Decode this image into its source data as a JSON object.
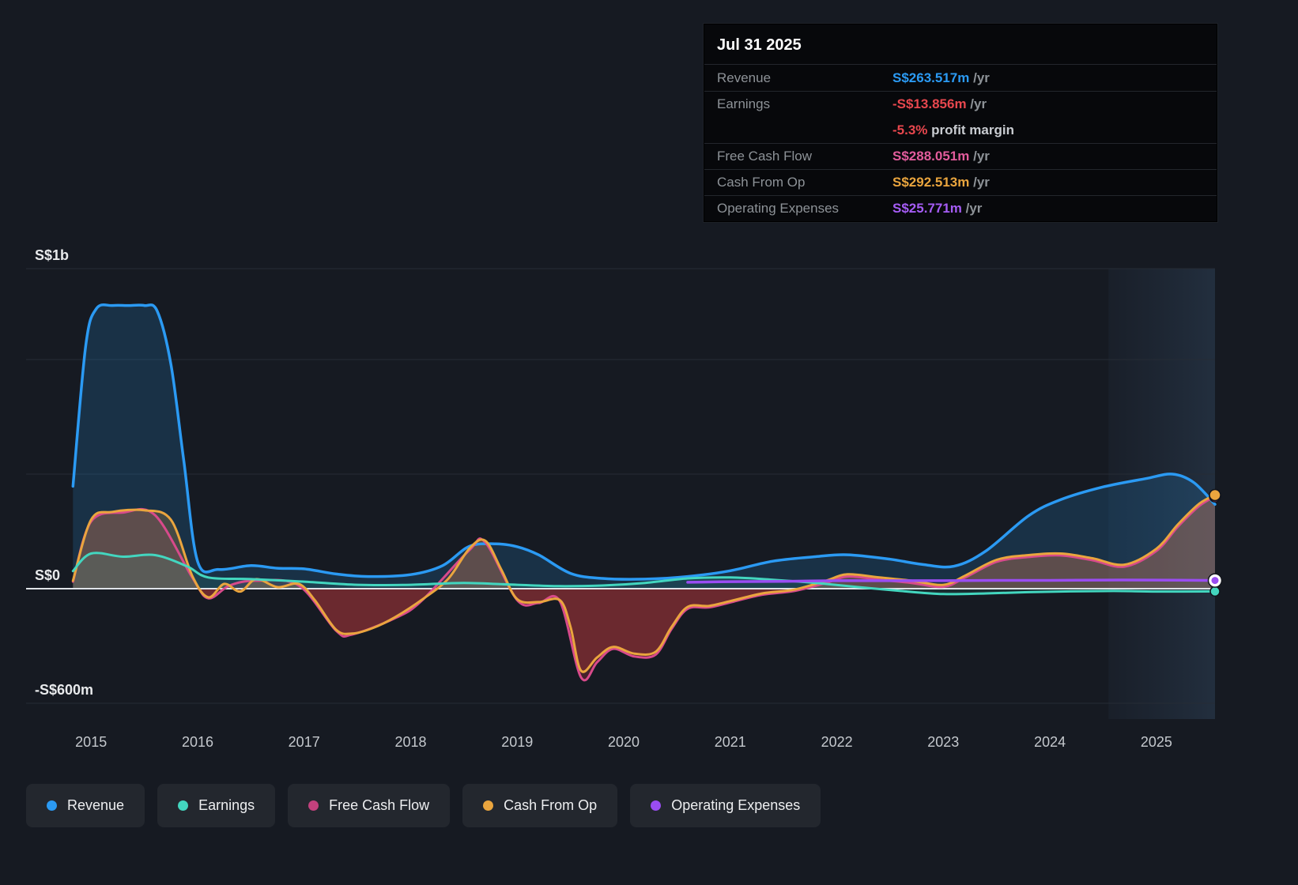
{
  "tooltip": {
    "date": "Jul 31 2025",
    "rows": [
      {
        "label": "Revenue",
        "value": "S$263.517m",
        "suffix": " /yr",
        "color": "#2b9af3",
        "divider": false,
        "suffix_bright": false
      },
      {
        "label": "Earnings",
        "value": "-S$13.856m",
        "suffix": " /yr",
        "color": "#e8474e",
        "divider": true,
        "suffix_bright": false
      },
      {
        "label": "",
        "value": "-5.3%",
        "suffix": " profit margin",
        "color": "#e8474e",
        "divider": false,
        "suffix_bright": true
      },
      {
        "label": "Free Cash Flow",
        "value": "S$288.051m",
        "suffix": " /yr",
        "color": "#e25c9c",
        "divider": true,
        "suffix_bright": false
      },
      {
        "label": "Cash From Op",
        "value": "S$292.513m",
        "suffix": " /yr",
        "color": "#eaa53e",
        "divider": true,
        "suffix_bright": false
      },
      {
        "label": "Operating Expenses",
        "value": "S$25.771m",
        "suffix": " /yr",
        "color": "#a55cf5",
        "divider": true,
        "suffix_bright": false
      }
    ]
  },
  "legend": [
    {
      "key": "revenue",
      "label": "Revenue",
      "color": "#2b9af3"
    },
    {
      "key": "earnings",
      "label": "Earnings",
      "color": "#43d6bf"
    },
    {
      "key": "fcf",
      "label": "Free Cash Flow",
      "color": "#c2417d"
    },
    {
      "key": "cashop",
      "label": "Cash From Op",
      "color": "#eaa53e"
    },
    {
      "key": "opex",
      "label": "Operating Expenses",
      "color": "#9a4df2"
    }
  ],
  "chart_data": {
    "type": "area",
    "unit": "S$ millions per year",
    "x_range": [
      2014.39,
      2025.55
    ],
    "highlight_from": 2024.55,
    "x_ticks": [
      2015,
      2016,
      2017,
      2018,
      2019,
      2020,
      2021,
      2022,
      2023,
      2024,
      2025
    ],
    "y_axis": {
      "y_max": 1000,
      "y_min": -600,
      "labels": [
        {
          "v": 1000,
          "label": "S$1b"
        },
        {
          "v": 0,
          "label": "S$0"
        },
        {
          "v": -600,
          "label": "-S$600m"
        }
      ],
      "gridlines": [
        1000,
        716,
        358,
        -600
      ],
      "zero_line": 0
    },
    "series": [
      {
        "key": "revenue",
        "name": "Revenue",
        "color": "#2b9af3",
        "width": 3.5,
        "fill": "rgba(37,130,200,0.22)",
        "neg_fill": "rgba(37,130,200,0.22)",
        "points": [
          [
            2014.83,
            320
          ],
          [
            2014.95,
            760
          ],
          [
            2015.05,
            875
          ],
          [
            2015.2,
            885
          ],
          [
            2015.35,
            885
          ],
          [
            2015.5,
            885
          ],
          [
            2015.62,
            868
          ],
          [
            2015.75,
            700
          ],
          [
            2015.87,
            400
          ],
          [
            2016.0,
            85
          ],
          [
            2016.2,
            60
          ],
          [
            2016.5,
            72
          ],
          [
            2016.75,
            64
          ],
          [
            2017.0,
            62
          ],
          [
            2017.3,
            46
          ],
          [
            2017.6,
            38
          ],
          [
            2018.0,
            44
          ],
          [
            2018.3,
            72
          ],
          [
            2018.55,
            132
          ],
          [
            2018.8,
            140
          ],
          [
            2019.0,
            131
          ],
          [
            2019.2,
            106
          ],
          [
            2019.5,
            48
          ],
          [
            2019.8,
            32
          ],
          [
            2020.2,
            30
          ],
          [
            2020.6,
            38
          ],
          [
            2021.0,
            56
          ],
          [
            2021.4,
            86
          ],
          [
            2021.8,
            100
          ],
          [
            2022.1,
            106
          ],
          [
            2022.5,
            92
          ],
          [
            2022.8,
            76
          ],
          [
            2023.1,
            70
          ],
          [
            2023.4,
            118
          ],
          [
            2023.8,
            228
          ],
          [
            2024.1,
            278
          ],
          [
            2024.5,
            318
          ],
          [
            2024.9,
            344
          ],
          [
            2025.15,
            358
          ],
          [
            2025.35,
            332
          ],
          [
            2025.55,
            263.5
          ]
        ]
      },
      {
        "key": "fcf",
        "name": "Free Cash Flow",
        "color": "#d84a8b",
        "width": 3,
        "fill": "rgba(216,74,139,0.16)",
        "neg_fill": "rgba(190,55,70,0.28)",
        "marker": {
          "r": 7,
          "fill": "#d84a8b"
        },
        "points": [
          [
            2014.83,
            22
          ],
          [
            2015.0,
            210
          ],
          [
            2015.3,
            238
          ],
          [
            2015.6,
            230
          ],
          [
            2015.95,
            35
          ],
          [
            2016.1,
            -50
          ],
          [
            2016.3,
            10
          ],
          [
            2016.55,
            25
          ],
          [
            2016.95,
            10
          ],
          [
            2017.3,
            -220
          ],
          [
            2017.45,
            -240
          ],
          [
            2017.85,
            -155
          ],
          [
            2018.1,
            -65
          ],
          [
            2018.55,
            120
          ],
          [
            2018.7,
            145
          ],
          [
            2019.0,
            -60
          ],
          [
            2019.2,
            -75
          ],
          [
            2019.4,
            -65
          ],
          [
            2019.6,
            -465
          ],
          [
            2019.75,
            -385
          ],
          [
            2019.9,
            -315
          ],
          [
            2020.1,
            -355
          ],
          [
            2020.3,
            -345
          ],
          [
            2020.45,
            -210
          ],
          [
            2020.6,
            -105
          ],
          [
            2020.8,
            -98
          ],
          [
            2021.0,
            -72
          ],
          [
            2021.3,
            -32
          ],
          [
            2021.6,
            -12
          ],
          [
            2021.9,
            18
          ],
          [
            2022.1,
            38
          ],
          [
            2022.4,
            28
          ],
          [
            2022.7,
            18
          ],
          [
            2023.0,
            6
          ],
          [
            2023.2,
            34
          ],
          [
            2023.5,
            84
          ],
          [
            2023.8,
            99
          ],
          [
            2024.1,
            104
          ],
          [
            2024.4,
            89
          ],
          [
            2024.7,
            69
          ],
          [
            2025.0,
            118
          ],
          [
            2025.2,
            193
          ],
          [
            2025.4,
            258
          ],
          [
            2025.55,
            288.1
          ]
        ]
      },
      {
        "key": "cashop",
        "name": "Cash From Op",
        "color": "#eaa53e",
        "width": 3,
        "fill": "rgba(234,165,62,0.22)",
        "neg_fill": "rgba(200,60,55,0.30)",
        "marker": {
          "r": 7,
          "fill": "#eaa53e"
        },
        "points": [
          [
            2014.83,
            25
          ],
          [
            2015.0,
            215
          ],
          [
            2015.2,
            240
          ],
          [
            2015.5,
            245
          ],
          [
            2015.75,
            215
          ],
          [
            2015.95,
            40
          ],
          [
            2016.1,
            -45
          ],
          [
            2016.25,
            15
          ],
          [
            2016.4,
            -15
          ],
          [
            2016.55,
            30
          ],
          [
            2016.75,
            5
          ],
          [
            2016.95,
            15
          ],
          [
            2017.1,
            -60
          ],
          [
            2017.3,
            -215
          ],
          [
            2017.45,
            -235
          ],
          [
            2017.65,
            -205
          ],
          [
            2017.85,
            -150
          ],
          [
            2018.1,
            -60
          ],
          [
            2018.35,
            30
          ],
          [
            2018.55,
            125
          ],
          [
            2018.7,
            150
          ],
          [
            2018.85,
            60
          ],
          [
            2019.0,
            -55
          ],
          [
            2019.2,
            -70
          ],
          [
            2019.4,
            -60
          ],
          [
            2019.5,
            -200
          ],
          [
            2019.6,
            -430
          ],
          [
            2019.75,
            -360
          ],
          [
            2019.9,
            -305
          ],
          [
            2020.1,
            -340
          ],
          [
            2020.3,
            -330
          ],
          [
            2020.45,
            -200
          ],
          [
            2020.6,
            -95
          ],
          [
            2020.8,
            -90
          ],
          [
            2021.0,
            -65
          ],
          [
            2021.3,
            -25
          ],
          [
            2021.6,
            -5
          ],
          [
            2021.9,
            25
          ],
          [
            2022.1,
            45
          ],
          [
            2022.4,
            35
          ],
          [
            2022.7,
            25
          ],
          [
            2023.0,
            12
          ],
          [
            2023.2,
            40
          ],
          [
            2023.5,
            90
          ],
          [
            2023.8,
            105
          ],
          [
            2024.1,
            110
          ],
          [
            2024.4,
            95
          ],
          [
            2024.7,
            75
          ],
          [
            2025.0,
            125
          ],
          [
            2025.2,
            200
          ],
          [
            2025.4,
            265
          ],
          [
            2025.55,
            292.5
          ]
        ]
      },
      {
        "key": "earnings",
        "name": "Earnings",
        "color": "#43d6bf",
        "width": 3,
        "fill": "rgba(67,214,191,0.10)",
        "neg_fill": "rgba(67,214,191,0.10)",
        "marker": {
          "r": 6,
          "fill": "#43d6bf"
        },
        "points": [
          [
            2014.83,
            55
          ],
          [
            2015.0,
            110
          ],
          [
            2015.3,
            100
          ],
          [
            2015.6,
            105
          ],
          [
            2015.9,
            70
          ],
          [
            2016.1,
            35
          ],
          [
            2016.5,
            30
          ],
          [
            2017.0,
            22
          ],
          [
            2017.5,
            12
          ],
          [
            2018.0,
            12
          ],
          [
            2018.5,
            18
          ],
          [
            2019.0,
            12
          ],
          [
            2019.4,
            8
          ],
          [
            2019.8,
            10
          ],
          [
            2020.2,
            18
          ],
          [
            2020.6,
            32
          ],
          [
            2021.0,
            35
          ],
          [
            2021.4,
            28
          ],
          [
            2021.8,
            18
          ],
          [
            2022.2,
            5
          ],
          [
            2022.6,
            -12
          ],
          [
            2023.0,
            -28
          ],
          [
            2023.4,
            -25
          ],
          [
            2023.8,
            -18
          ],
          [
            2024.2,
            -14
          ],
          [
            2024.6,
            -12
          ],
          [
            2025.0,
            -15
          ],
          [
            2025.55,
            -13.9
          ]
        ]
      },
      {
        "key": "opex",
        "name": "Operating Expenses",
        "color": "#9a4df2",
        "width": 3.5,
        "fill": null,
        "neg_fill": null,
        "marker": {
          "r": 8.5,
          "fill": "#ffffff",
          "inner": {
            "r": 4.5,
            "fill": "#9a4df2"
          }
        },
        "points": [
          [
            2020.6,
            20
          ],
          [
            2021.0,
            22
          ],
          [
            2021.5,
            23
          ],
          [
            2022.0,
            25
          ],
          [
            2022.5,
            25
          ],
          [
            2023.0,
            25
          ],
          [
            2023.5,
            26
          ],
          [
            2024.0,
            26
          ],
          [
            2024.5,
            27
          ],
          [
            2025.0,
            27
          ],
          [
            2025.55,
            25.8
          ]
        ]
      }
    ]
  }
}
